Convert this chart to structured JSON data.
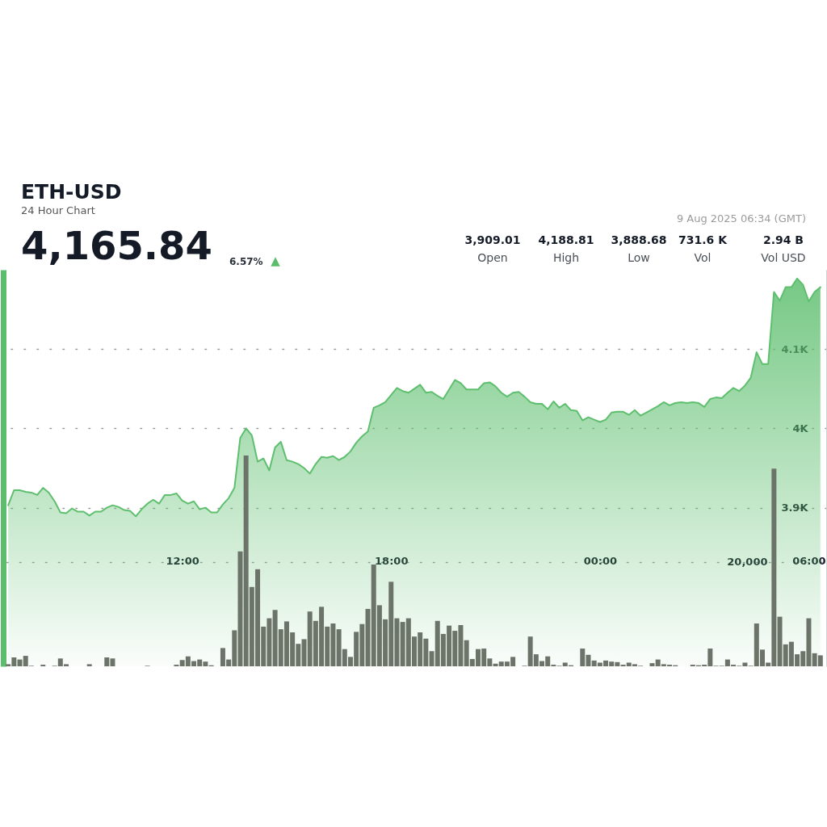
{
  "chart_data": {
    "type": "area",
    "title": "ETH-USD",
    "subtitle": "24 Hour Chart",
    "annotations": [
      "4,165.84",
      "6.57%",
      "▲",
      "9 Aug 2025 06:34 (GMT)",
      "3,909.01",
      "Open",
      "4,188.81",
      "High",
      "3,888.68",
      "Low",
      "731.6 K",
      "Vol",
      "2.94 B",
      "Vol USD"
    ],
    "x": [
      "2025-08-08T07:00",
      "2025-08-08T07:10",
      "2025-08-08T07:20",
      "2025-08-08T07:30",
      "2025-08-08T07:40",
      "2025-08-08T07:50",
      "2025-08-08T08:00",
      "2025-08-08T08:10",
      "2025-08-08T08:20",
      "2025-08-08T08:30",
      "2025-08-08T08:40",
      "2025-08-08T08:50",
      "2025-08-08T09:00",
      "2025-08-08T09:10",
      "2025-08-08T09:20",
      "2025-08-08T09:30",
      "2025-08-08T09:40",
      "2025-08-08T09:50",
      "2025-08-08T10:00",
      "2025-08-08T10:10",
      "2025-08-08T10:20",
      "2025-08-08T10:30",
      "2025-08-08T10:40",
      "2025-08-08T10:50",
      "2025-08-08T11:00",
      "2025-08-08T11:10",
      "2025-08-08T11:20",
      "2025-08-08T11:30",
      "2025-08-08T11:40",
      "2025-08-08T11:50",
      "2025-08-08T12:00",
      "2025-08-08T12:10",
      "2025-08-08T12:20",
      "2025-08-08T12:30",
      "2025-08-08T12:40",
      "2025-08-08T12:50",
      "2025-08-08T13:00",
      "2025-08-08T13:10",
      "2025-08-08T13:20",
      "2025-08-08T13:30",
      "2025-08-08T13:40",
      "2025-08-08T13:50",
      "2025-08-08T14:00",
      "2025-08-08T14:10",
      "2025-08-08T14:20",
      "2025-08-08T14:30",
      "2025-08-08T14:40",
      "2025-08-08T14:50",
      "2025-08-08T15:00",
      "2025-08-08T15:10",
      "2025-08-08T15:20",
      "2025-08-08T15:30",
      "2025-08-08T15:40",
      "2025-08-08T15:50",
      "2025-08-08T16:00",
      "2025-08-08T16:10",
      "2025-08-08T16:20",
      "2025-08-08T16:30",
      "2025-08-08T16:40",
      "2025-08-08T16:50",
      "2025-08-08T17:00",
      "2025-08-08T17:10",
      "2025-08-08T17:20",
      "2025-08-08T17:30",
      "2025-08-08T17:40",
      "2025-08-08T17:50",
      "2025-08-08T18:00",
      "2025-08-08T18:10",
      "2025-08-08T18:20",
      "2025-08-08T18:30",
      "2025-08-08T18:40",
      "2025-08-08T18:50",
      "2025-08-08T19:00",
      "2025-08-08T19:10",
      "2025-08-08T19:20",
      "2025-08-08T19:30",
      "2025-08-08T19:40",
      "2025-08-08T19:50",
      "2025-08-08T20:00",
      "2025-08-08T20:10",
      "2025-08-08T20:20",
      "2025-08-08T20:30",
      "2025-08-08T20:40",
      "2025-08-08T20:50",
      "2025-08-08T21:00",
      "2025-08-08T21:10",
      "2025-08-08T21:20",
      "2025-08-08T21:30",
      "2025-08-08T21:40",
      "2025-08-08T21:50",
      "2025-08-08T22:00",
      "2025-08-08T22:10",
      "2025-08-08T22:20",
      "2025-08-08T22:30",
      "2025-08-08T22:40",
      "2025-08-08T22:50",
      "2025-08-08T23:00",
      "2025-08-08T23:10",
      "2025-08-08T23:20",
      "2025-08-08T23:30",
      "2025-08-08T23:40",
      "2025-08-08T23:50",
      "2025-08-09T00:00",
      "2025-08-09T00:10",
      "2025-08-09T00:20",
      "2025-08-09T00:30",
      "2025-08-09T00:40",
      "2025-08-09T00:50",
      "2025-08-09T01:00",
      "2025-08-09T01:10",
      "2025-08-09T01:20",
      "2025-08-09T01:30",
      "2025-08-09T01:40",
      "2025-08-09T01:50",
      "2025-08-09T02:00",
      "2025-08-09T02:10",
      "2025-08-09T02:20",
      "2025-08-09T02:30",
      "2025-08-09T02:40",
      "2025-08-09T02:50",
      "2025-08-09T03:00",
      "2025-08-09T03:10",
      "2025-08-09T03:20",
      "2025-08-09T03:30",
      "2025-08-09T03:40",
      "2025-08-09T03:50",
      "2025-08-09T04:00",
      "2025-08-09T04:10",
      "2025-08-09T04:20",
      "2025-08-09T04:30",
      "2025-08-09T04:40",
      "2025-08-09T04:50",
      "2025-08-09T05:00",
      "2025-08-09T05:10",
      "2025-08-09T05:20",
      "2025-08-09T05:30",
      "2025-08-09T05:40",
      "2025-08-09T05:50",
      "2025-08-09T06:00",
      "2025-08-09T06:10",
      "2025-08-09T06:20"
    ],
    "xlim": [
      "2025-08-08T06:57",
      "2025-08-09T06:30"
    ],
    "xticks": [
      {
        "value": "2025-08-08T12:00",
        "label": "12:00"
      },
      {
        "value": "2025-08-08T18:00",
        "label": "18:00"
      },
      {
        "value": "2025-08-09T00:00",
        "label": "00:00"
      },
      {
        "value": "2025-08-09T06:00",
        "label": "06:00"
      }
    ],
    "ylim": [
      3700,
      4200
    ],
    "yticks": [
      {
        "value": 3900,
        "label": "3.9K"
      },
      {
        "value": 4000,
        "label": "4K"
      },
      {
        "value": 4100,
        "label": "4.1K"
      }
    ],
    "y2lim": [
      0,
      76000
    ],
    "y2ticks": [
      {
        "value": 20000,
        "label": "20,000"
      }
    ],
    "grid": "y",
    "series": [
      {
        "color": "#5ebf6f",
        "values": [
          3903,
          3922,
          3922,
          3920,
          3919,
          3916,
          3925,
          3919,
          3908,
          3894,
          3893,
          3899,
          3895,
          3895,
          3890,
          3895,
          3895,
          3900,
          3903,
          3901,
          3897,
          3896,
          3889,
          3898,
          3905,
          3910,
          3905,
          3916,
          3916,
          3918,
          3909,
          3905,
          3908,
          3898,
          3900,
          3894,
          3894,
          3904,
          3912,
          3925,
          3988,
          4000,
          3991,
          3958,
          3962,
          3947,
          3976,
          3983,
          3960,
          3958,
          3955,
          3950,
          3943,
          3955,
          3964,
          3963,
          3965,
          3960,
          3964,
          3971,
          3982,
          3990,
          3996,
          4026,
          4029,
          4033,
          4042,
          4051,
          4047,
          4045,
          4050,
          4055,
          4045,
          4046,
          4041,
          4037,
          4049,
          4061,
          4057,
          4049,
          4049,
          4049,
          4057,
          4058,
          4053,
          4045,
          4040,
          4045,
          4046,
          4040,
          4033,
          4031,
          4031,
          4024,
          4034,
          4026,
          4031,
          4023,
          4022,
          4010,
          4014,
          4011,
          4008,
          4011,
          4020,
          4021,
          4021,
          4017,
          4023,
          4016,
          4020,
          4024,
          4028,
          4033,
          4029,
          4032,
          4033,
          4032,
          4033,
          4032,
          4027,
          4037,
          4039,
          4038,
          4045,
          4051,
          4047,
          4054,
          4064,
          4096,
          4081,
          4081,
          4172,
          4161,
          4178,
          4178,
          4189,
          4181,
          4160,
          4172,
          4178
        ]
      },
      {
        "type": "bar",
        "axis": "y2",
        "color": "#6c7469",
        "values": [
          400,
          1700,
          1300,
          2000,
          100,
          null,
          300,
          null,
          100,
          1500,
          400,
          null,
          null,
          null,
          400,
          null,
          null,
          1700,
          1500,
          null,
          null,
          null,
          null,
          null,
          100,
          null,
          null,
          null,
          null,
          300,
          1200,
          1900,
          1000,
          1300,
          900,
          200,
          null,
          3500,
          1300,
          6900,
          22000,
          40400,
          15200,
          18600,
          7600,
          9200,
          10800,
          7100,
          8600,
          6500,
          4300,
          5200,
          10500,
          8700,
          11400,
          7600,
          8200,
          7100,
          3300,
          1800,
          6600,
          8100,
          11000,
          19500,
          11700,
          9000,
          16200,
          9200,
          8500,
          9200,
          5700,
          6500,
          5300,
          2900,
          8700,
          6200,
          7800,
          6800,
          7900,
          5000,
          1400,
          3300,
          3400,
          1500,
          500,
          900,
          900,
          1800,
          null,
          100,
          5700,
          2300,
          1000,
          1900,
          300,
          100,
          700,
          200,
          null,
          3400,
          2200,
          1100,
          700,
          1100,
          900,
          800,
          300,
          700,
          400,
          100,
          null,
          600,
          1300,
          400,
          300,
          200,
          null,
          null,
          300,
          200,
          300,
          3400,
          100,
          100,
          1300,
          300,
          100,
          700,
          100,
          8200,
          3200,
          700,
          37900,
          9500,
          4200,
          4700,
          2300,
          2900,
          9200,
          2500,
          2100
        ]
      }
    ]
  }
}
